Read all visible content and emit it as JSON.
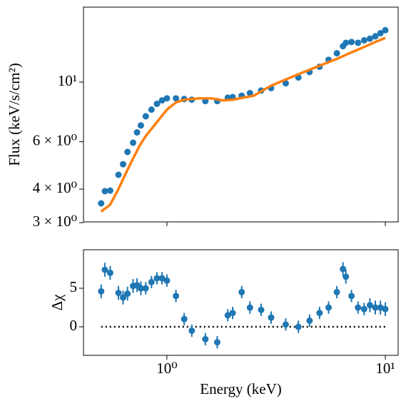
{
  "chart_data": [
    {
      "type": "scatter",
      "ylabel": "Flux (keV/s/cm²)",
      "yscale": "log",
      "xscale": "log",
      "xlim": [
        0.415,
        11.45
      ],
      "xticks": [
        1,
        10
      ],
      "ylim": [
        3.02,
        19.0
      ],
      "yticks": [
        {
          "value": 3,
          "label": "3 × 10⁰"
        },
        {
          "value": 4,
          "label": "4 × 10⁰"
        },
        {
          "value": 6,
          "label": "6 × 10⁰"
        },
        {
          "value": 10,
          "label": "10¹"
        }
      ],
      "series": [
        {
          "kind": "points",
          "color": "#1f77b4",
          "x": [
            0.5,
            0.52,
            0.55,
            0.6,
            0.63,
            0.66,
            0.7,
            0.73,
            0.76,
            0.8,
            0.85,
            0.9,
            0.95,
            1.0,
            1.1,
            1.2,
            1.3,
            1.5,
            1.7,
            1.9,
            2.0,
            2.2,
            2.4,
            2.7,
            3.0,
            3.5,
            4,
            4.5,
            5,
            5.5,
            6,
            6.4,
            6.6,
            7,
            7.5,
            8,
            8.5,
            9,
            9.5,
            10
          ],
          "values": [
            3.54,
            3.93,
            3.95,
            4.52,
            4.95,
            5.5,
            5.95,
            6.5,
            6.9,
            7.46,
            7.9,
            8.3,
            8.55,
            8.7,
            8.7,
            8.65,
            8.6,
            8.5,
            8.5,
            8.75,
            8.8,
            8.9,
            9.1,
            9.3,
            9.5,
            9.9,
            10.4,
            10.9,
            11.4,
            12.1,
            12.8,
            13.6,
            14.0,
            14.1,
            14.0,
            14.3,
            14.5,
            14.8,
            15.2,
            15.6
          ]
        },
        {
          "kind": "line",
          "color": "#ff7f0e",
          "x": [
            0.5,
            0.55,
            0.6,
            0.65,
            0.7,
            0.75,
            0.8,
            0.9,
            1.0,
            1.1,
            1.2,
            1.4,
            1.6,
            1.8,
            2.0,
            2.5,
            3,
            4,
            5,
            6,
            7,
            8,
            9,
            10
          ],
          "values": [
            3.3,
            3.5,
            4.0,
            4.6,
            5.2,
            5.8,
            6.3,
            7.1,
            7.9,
            8.4,
            8.6,
            8.7,
            8.7,
            8.55,
            8.6,
            8.9,
            9.7,
            10.7,
            11.5,
            12.2,
            12.9,
            13.5,
            14.1,
            14.6
          ]
        }
      ]
    },
    {
      "type": "errorbar",
      "xlabel": "Energy (keV)",
      "ylabel": "Δχ",
      "xscale": "log",
      "xlim": [
        0.415,
        11.45
      ],
      "xticks": [
        {
          "value": 1,
          "label": "10⁰"
        },
        {
          "value": 10,
          "label": "10¹"
        }
      ],
      "ylim": [
        -3.7,
        10
      ],
      "yticks": [
        0,
        5
      ],
      "hline": 0,
      "color": "#1f77b4",
      "x": [
        0.5,
        0.52,
        0.55,
        0.6,
        0.63,
        0.66,
        0.7,
        0.73,
        0.76,
        0.8,
        0.85,
        0.9,
        0.95,
        1.0,
        1.1,
        1.2,
        1.3,
        1.5,
        1.7,
        1.9,
        2.0,
        2.2,
        2.4,
        2.7,
        3.0,
        3.5,
        4,
        4.5,
        5,
        5.5,
        6,
        6.4,
        6.6,
        7,
        7.5,
        8,
        8.5,
        9,
        9.5,
        10
      ],
      "values": [
        4.6,
        7.4,
        7.0,
        4.4,
        3.8,
        4.3,
        5.3,
        5.4,
        5.0,
        5.0,
        5.8,
        6.3,
        6.3,
        6.0,
        4.0,
        1.0,
        -0.5,
        -1.6,
        -2.0,
        1.5,
        1.8,
        4.5,
        2.5,
        2.2,
        1.2,
        0.3,
        0.0,
        0.8,
        1.8,
        2.5,
        4.5,
        7.5,
        6.5,
        4.0,
        2.5,
        2.3,
        2.8,
        2.5,
        2.5,
        2.3
      ],
      "errors": [
        0.9,
        0.9,
        0.9,
        0.9,
        0.9,
        0.9,
        0.9,
        0.9,
        0.9,
        0.8,
        0.8,
        0.8,
        0.8,
        0.8,
        0.8,
        0.8,
        0.8,
        0.8,
        0.8,
        0.8,
        0.8,
        0.8,
        0.8,
        0.8,
        0.8,
        0.8,
        0.8,
        0.8,
        0.8,
        0.8,
        0.8,
        0.9,
        0.9,
        0.8,
        0.8,
        0.8,
        0.9,
        0.9,
        0.9,
        0.9
      ]
    }
  ]
}
